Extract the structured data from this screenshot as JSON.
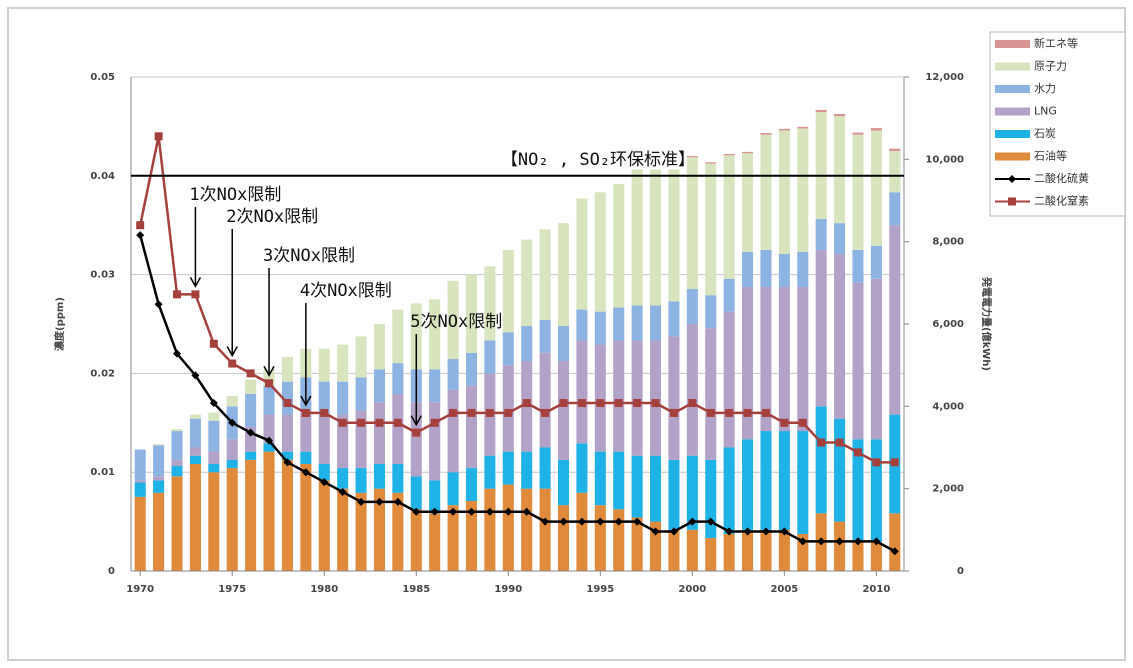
{
  "chart_data": {
    "type": "bar",
    "stacked": true,
    "y_label": "濃度(ppm)",
    "y2_label": "発電電力量(億kWh)",
    "x": [
      1970,
      1971,
      1972,
      1973,
      1974,
      1975,
      1976,
      1977,
      1978,
      1979,
      1980,
      1981,
      1982,
      1983,
      1984,
      1985,
      1986,
      1987,
      1988,
      1989,
      1990,
      1991,
      1992,
      1993,
      1994,
      1995,
      1996,
      1997,
      1998,
      1999,
      2000,
      2001,
      2002,
      2003,
      2004,
      2005,
      2006,
      2007,
      2008,
      2009,
      2010,
      2011
    ],
    "xlim": [
      1969.5,
      2011.5
    ],
    "xticks": [
      1970,
      1975,
      1980,
      1985,
      1990,
      1995,
      2000,
      2005,
      2010
    ],
    "ylim": [
      0,
      0.05
    ],
    "yticks": [
      0,
      0.01,
      0.02,
      0.03,
      0.04,
      0.05
    ],
    "y2lim": [
      0,
      12000
    ],
    "y2ticks": [
      0,
      {
        "value": 2000,
        "label": "2,000"
      },
      {
        "value": 4000,
        "label": "4,000"
      },
      {
        "value": 6000,
        "label": "6,000"
      },
      {
        "value": 8000,
        "label": "8,000"
      },
      {
        "value": 10000,
        "label": "10,000"
      },
      {
        "value": 12000,
        "label": "12,000"
      }
    ],
    "grid": true,
    "standard": {
      "label": "【NO₂ , SO₂环保标准】",
      "value": 0.04
    },
    "annotations": [
      {
        "text": "1次NOx限制",
        "x": 1973
      },
      {
        "text": "2次NOx限制",
        "x": 1975
      },
      {
        "text": "3次NOx限制",
        "x": 1977
      },
      {
        "text": "4次NOx限制",
        "x": 1979
      },
      {
        "text": "5次NOx限制",
        "x": 1985
      }
    ],
    "series": [
      {
        "name": "石油等",
        "color": "#e08a3c",
        "axis": "y2",
        "values": [
          1800,
          1900,
          2300,
          2600,
          2400,
          2500,
          2700,
          2900,
          2700,
          2600,
          2200,
          2000,
          1900,
          2000,
          1900,
          1500,
          1400,
          1600,
          1700,
          2000,
          2100,
          2000,
          2000,
          1600,
          1900,
          1600,
          1500,
          1300,
          1200,
          1000,
          1000,
          800,
          900,
          1000,
          1000,
          1000,
          900,
          1400,
          1200,
          700,
          700,
          1400
        ]
      },
      {
        "name": "石炭",
        "color": "#1eb2e6",
        "axis": "y2",
        "values": [
          350,
          300,
          250,
          200,
          200,
          200,
          200,
          200,
          200,
          300,
          400,
          500,
          600,
          600,
          700,
          800,
          800,
          800,
          800,
          800,
          800,
          900,
          1000,
          1100,
          1200,
          1300,
          1400,
          1500,
          1600,
          1700,
          1800,
          1900,
          2100,
          2200,
          2400,
          2400,
          2500,
          2600,
          2500,
          2500,
          2500,
          2400
        ]
      },
      {
        "name": "LNG",
        "color": "#b3a2c7",
        "axis": "y2",
        "values": [
          50,
          100,
          150,
          200,
          300,
          500,
          600,
          700,
          900,
          1000,
          1200,
          1300,
          1400,
          1500,
          1700,
          1800,
          1900,
          2000,
          2000,
          2000,
          2100,
          2200,
          2300,
          2400,
          2500,
          2600,
          2700,
          2800,
          2800,
          3000,
          3200,
          3200,
          3300,
          3700,
          3500,
          3500,
          3500,
          3800,
          4000,
          3800,
          3900,
          4600
        ]
      },
      {
        "name": "水力",
        "color": "#8db3e2",
        "axis": "y2",
        "values": [
          750,
          750,
          700,
          700,
          750,
          800,
          800,
          700,
          800,
          800,
          800,
          800,
          800,
          800,
          750,
          800,
          800,
          750,
          800,
          800,
          800,
          850,
          800,
          850,
          750,
          800,
          800,
          850,
          850,
          850,
          850,
          800,
          800,
          850,
          900,
          800,
          850,
          750,
          750,
          800,
          800,
          800
        ]
      },
      {
        "name": "原子力",
        "color": "#d7e4bd",
        "axis": "y2",
        "values": [
          0,
          30,
          50,
          100,
          200,
          250,
          350,
          400,
          600,
          700,
          800,
          900,
          1000,
          1100,
          1300,
          1600,
          1700,
          1900,
          1900,
          1800,
          2000,
          2100,
          2200,
          2500,
          2700,
          2900,
          3000,
          3300,
          3300,
          3200,
          3200,
          3200,
          3000,
          2400,
          2800,
          3000,
          3000,
          2600,
          2600,
          2800,
          2800,
          1000
        ]
      },
      {
        "name": "新エネ等",
        "color": "#d99594",
        "axis": "y2",
        "values": [
          0,
          0,
          0,
          0,
          0,
          0,
          0,
          0,
          0,
          0,
          0,
          0,
          0,
          0,
          0,
          0,
          0,
          0,
          0,
          0,
          0,
          0,
          0,
          0,
          0,
          0,
          0,
          0,
          0,
          0,
          30,
          30,
          30,
          30,
          40,
          40,
          40,
          50,
          50,
          50,
          60,
          60
        ]
      },
      {
        "name": "二酸化硫黄",
        "color": "#000000",
        "type": "line",
        "marker": "diamond",
        "axis": "y",
        "values": [
          0.034,
          0.027,
          0.022,
          0.0198,
          0.017,
          0.015,
          0.014,
          0.0132,
          0.011,
          0.01,
          0.009,
          0.008,
          0.007,
          0.007,
          0.007,
          0.006,
          0.006,
          0.006,
          0.006,
          0.006,
          0.006,
          0.006,
          0.005,
          0.005,
          0.005,
          0.005,
          0.005,
          0.005,
          0.004,
          0.004,
          0.005,
          0.005,
          0.004,
          0.004,
          0.004,
          0.004,
          0.003,
          0.003,
          0.003,
          0.003,
          0.003,
          0.002
        ]
      },
      {
        "name": "二酸化窒素",
        "color": "#a5403c",
        "type": "line",
        "marker": "square",
        "axis": "y",
        "values": [
          0.035,
          0.044,
          0.028,
          0.028,
          0.023,
          0.021,
          0.02,
          0.019,
          0.017,
          0.016,
          0.016,
          0.015,
          0.015,
          0.015,
          0.015,
          0.014,
          0.015,
          0.016,
          0.016,
          0.016,
          0.016,
          0.017,
          0.016,
          0.017,
          0.017,
          0.017,
          0.017,
          0.017,
          0.017,
          0.016,
          0.017,
          0.016,
          0.016,
          0.016,
          0.016,
          0.015,
          0.015,
          0.013,
          0.013,
          0.012,
          0.011,
          0.011
        ]
      }
    ],
    "legend_order": [
      5,
      4,
      3,
      2,
      1,
      0,
      6,
      7
    ]
  }
}
